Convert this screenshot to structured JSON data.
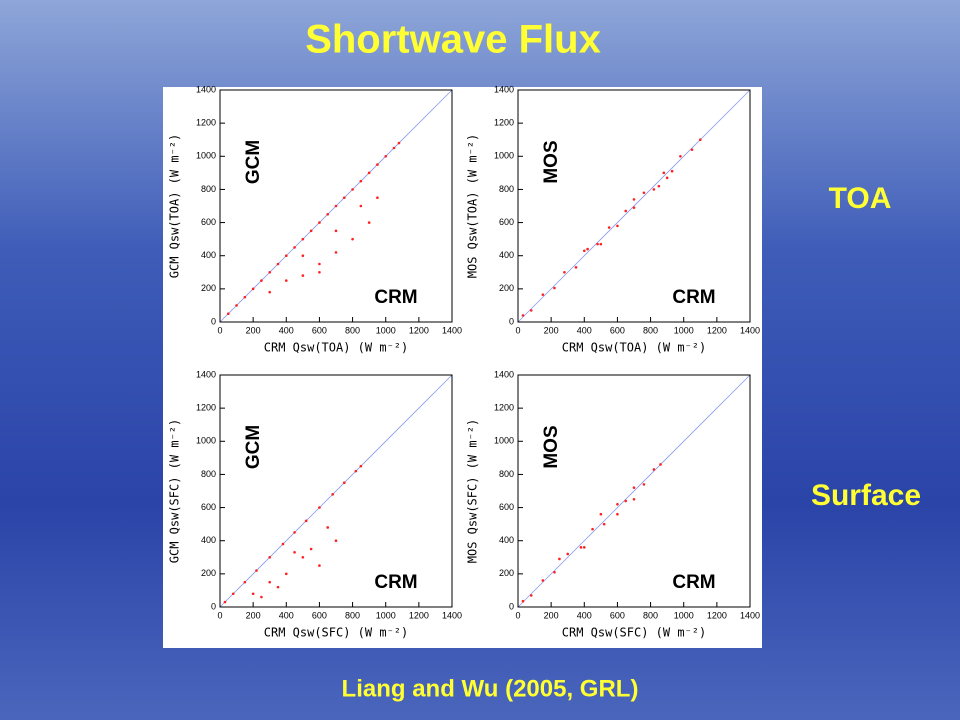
{
  "slide": {
    "title": "Shortwave Flux",
    "row_labels": [
      "TOA",
      "Surface"
    ],
    "citation": "Liang and Wu (2005, GRL)"
  },
  "chart_data": [
    {
      "type": "scatter",
      "x_label": "CRM Qsw(TOA) (W m⁻²)",
      "y_label": "GCM Qsw(TOA) (W m⁻²)",
      "annotations": [
        "GCM",
        "CRM"
      ],
      "color": "#ff2020",
      "xlim": [
        0,
        1400
      ],
      "ylim": [
        0,
        1400
      ],
      "xticks": [
        0,
        200,
        400,
        600,
        800,
        1000,
        1200,
        1400
      ],
      "yticks": [
        0,
        200,
        400,
        600,
        800,
        1000,
        1200,
        1400
      ],
      "x": [
        50,
        100,
        150,
        200,
        250,
        300,
        350,
        400,
        450,
        500,
        550,
        600,
        650,
        700,
        750,
        800,
        850,
        900,
        950,
        1000,
        1050,
        1080,
        300,
        400,
        500,
        600,
        700,
        800,
        900,
        950,
        850,
        700,
        600,
        500
      ],
      "values": [
        50,
        100,
        150,
        200,
        250,
        300,
        350,
        400,
        450,
        500,
        550,
        600,
        650,
        700,
        750,
        800,
        850,
        900,
        950,
        1000,
        1050,
        1080,
        180,
        250,
        280,
        350,
        420,
        500,
        600,
        750,
        700,
        550,
        300,
        400
      ]
    },
    {
      "type": "scatter",
      "x_label": "CRM Qsw(TOA) (W m⁻²)",
      "y_label": "MOS Qsw(TOA) (W m⁻²)",
      "annotations": [
        "MOS",
        "CRM"
      ],
      "color": "#ff2020",
      "xlim": [
        0,
        1400
      ],
      "ylim": [
        0,
        1400
      ],
      "xticks": [
        0,
        200,
        400,
        600,
        800,
        1000,
        1200,
        1400
      ],
      "yticks": [
        0,
        200,
        400,
        600,
        800,
        1000,
        1200,
        1400
      ],
      "x": [
        30,
        80,
        150,
        220,
        280,
        350,
        420,
        480,
        550,
        600,
        650,
        700,
        760,
        820,
        880,
        930,
        980,
        1050,
        1100,
        400,
        500,
        700,
        850,
        900
      ],
      "values": [
        40,
        70,
        165,
        205,
        300,
        330,
        440,
        470,
        570,
        580,
        670,
        690,
        780,
        800,
        900,
        910,
        1000,
        1040,
        1100,
        430,
        470,
        740,
        820,
        870
      ]
    },
    {
      "type": "scatter",
      "x_label": "CRM Qsw(SFC) (W m⁻²)",
      "y_label": "GCM Qsw(SFC) (W m⁻²)",
      "annotations": [
        "GCM",
        "CRM"
      ],
      "color": "#ff2020",
      "xlim": [
        0,
        1400
      ],
      "ylim": [
        0,
        1400
      ],
      "xticks": [
        0,
        200,
        400,
        600,
        800,
        1000,
        1200,
        1400
      ],
      "yticks": [
        0,
        200,
        400,
        600,
        800,
        1000,
        1200,
        1400
      ],
      "x": [
        30,
        80,
        150,
        220,
        300,
        380,
        450,
        520,
        600,
        680,
        750,
        820,
        850,
        200,
        300,
        400,
        500,
        550,
        600,
        650,
        700,
        350,
        450,
        250
      ],
      "values": [
        30,
        80,
        150,
        220,
        300,
        380,
        450,
        520,
        600,
        680,
        750,
        820,
        850,
        80,
        150,
        200,
        300,
        350,
        250,
        480,
        400,
        120,
        330,
        60
      ]
    },
    {
      "type": "scatter",
      "x_label": "CRM Qsw(SFC) (W m⁻²)",
      "y_label": "MOS Qsw(SFC) (W m⁻²)",
      "annotations": [
        "MOS",
        "CRM"
      ],
      "color": "#ff2020",
      "xlim": [
        0,
        1400
      ],
      "ylim": [
        0,
        1400
      ],
      "xticks": [
        0,
        200,
        400,
        600,
        800,
        1000,
        1200,
        1400
      ],
      "yticks": [
        0,
        200,
        400,
        600,
        800,
        1000,
        1200,
        1400
      ],
      "x": [
        30,
        80,
        150,
        220,
        300,
        380,
        450,
        520,
        600,
        650,
        700,
        760,
        820,
        860,
        250,
        400,
        500,
        600,
        700
      ],
      "values": [
        35,
        70,
        160,
        210,
        320,
        360,
        470,
        500,
        620,
        640,
        720,
        740,
        830,
        860,
        290,
        360,
        560,
        560,
        650
      ]
    }
  ]
}
